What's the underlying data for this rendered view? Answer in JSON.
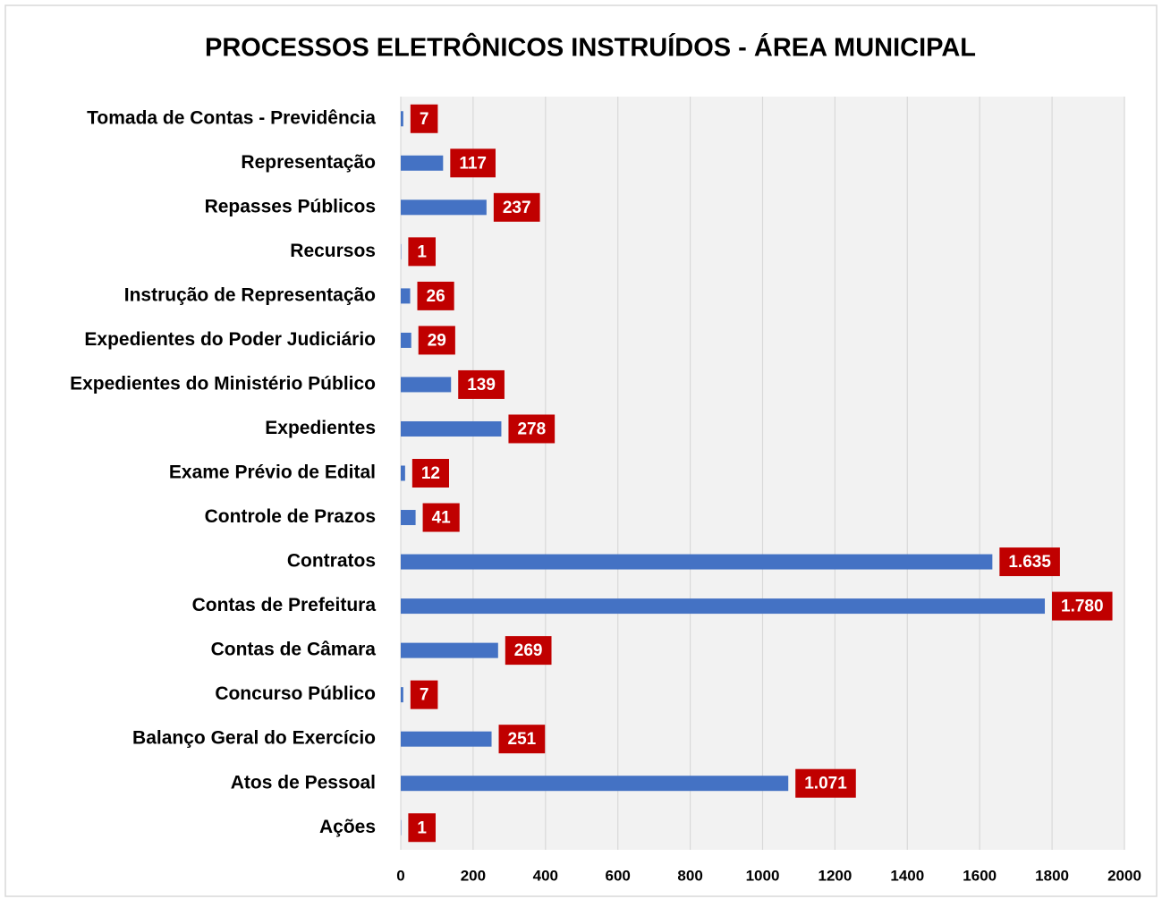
{
  "chart_data": {
    "type": "hbar",
    "title": "PROCESSOS ELETRÔNICOS INSTRUÍDOS - ÁREA MUNICIPAL",
    "categories": [
      "Tomada de Contas - Previdência",
      "Representação",
      "Repasses Públicos",
      "Recursos",
      "Instrução de Representação",
      "Expedientes do Poder Judiciário",
      "Expedientes do Ministério Público",
      "Expedientes",
      "Exame Prévio de Edital",
      "Controle de Prazos",
      "Contratos",
      "Contas de Prefeitura",
      "Contas de Câmara",
      "Concurso Público",
      "Balanço Geral do Exercício",
      "Atos de Pessoal",
      "Ações"
    ],
    "values": [
      7,
      117,
      237,
      1,
      26,
      29,
      139,
      278,
      12,
      41,
      1635,
      1780,
      269,
      7,
      251,
      1071,
      1
    ],
    "value_labels": [
      "7",
      "117",
      "237",
      "1",
      "26",
      "29",
      "139",
      "278",
      "12",
      "41",
      "1.635",
      "1.780",
      "269",
      "7",
      "251",
      "1.071",
      "1"
    ],
    "color": "#4472c4",
    "label_color": "#c00000",
    "xlim": [
      0,
      2000
    ],
    "xticks": [
      0,
      200,
      400,
      600,
      800,
      1000,
      1200,
      1400,
      1600,
      1800,
      2000
    ],
    "grid": true
  }
}
